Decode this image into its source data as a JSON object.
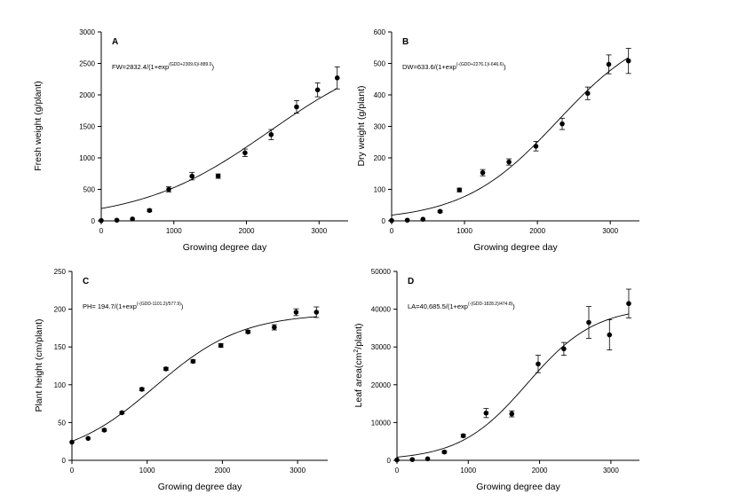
{
  "chart_data": [
    {
      "type": "scatter",
      "panel": "A",
      "xlabel": "Growing degree day",
      "ylabel": "Fresh weight (g/plant)",
      "equation": {
        "main": "FW=2832.4/(1+exp",
        "sup": "(GDD+2309.6)/-889.0",
        "end": ")"
      },
      "xlim": [
        0,
        3400
      ],
      "ylim": [
        0,
        3000
      ],
      "xticks": [
        0,
        1000,
        2000,
        3000
      ],
      "yticks": [
        0,
        500,
        1000,
        1500,
        2000,
        2500,
        3000
      ],
      "fit": {
        "a": 2832.4,
        "b": 2309.6,
        "c": 889.0
      },
      "points": [
        {
          "x": 0,
          "y": 5,
          "err": 0
        },
        {
          "x": 215,
          "y": 10,
          "err": 0
        },
        {
          "x": 430,
          "y": 30,
          "err": 0
        },
        {
          "x": 665,
          "y": 165,
          "err": 20
        },
        {
          "x": 930,
          "y": 500,
          "err": 40
        },
        {
          "x": 1250,
          "y": 710,
          "err": 60
        },
        {
          "x": 1610,
          "y": 710,
          "err": 35
        },
        {
          "x": 1980,
          "y": 1080,
          "err": 60
        },
        {
          "x": 2340,
          "y": 1370,
          "err": 80
        },
        {
          "x": 2690,
          "y": 1810,
          "err": 100
        },
        {
          "x": 2980,
          "y": 2080,
          "err": 110
        },
        {
          "x": 3250,
          "y": 2270,
          "err": 175
        }
      ]
    },
    {
      "type": "scatter",
      "panel": "B",
      "xlabel": "Growing degree day",
      "ylabel": "Dry weight (g/plant)",
      "equation": {
        "main": "DW=633.6/(1+exp",
        "sup": "(-(GDD+2276.1)/-646.6)",
        "end": ")"
      },
      "xlim": [
        0,
        3400
      ],
      "ylim": [
        0,
        600
      ],
      "xticks": [
        0,
        1000,
        2000,
        3000
      ],
      "yticks": [
        0,
        100,
        200,
        300,
        400,
        500,
        600
      ],
      "fit": {
        "a": 633.6,
        "b": 2276.1,
        "c": 646.6
      },
      "points": [
        {
          "x": 0,
          "y": 1,
          "err": 0
        },
        {
          "x": 215,
          "y": 2,
          "err": 0
        },
        {
          "x": 430,
          "y": 5,
          "err": 0
        },
        {
          "x": 665,
          "y": 30,
          "err": 3
        },
        {
          "x": 930,
          "y": 98,
          "err": 6
        },
        {
          "x": 1250,
          "y": 153,
          "err": 10
        },
        {
          "x": 1610,
          "y": 187,
          "err": 10
        },
        {
          "x": 1980,
          "y": 237,
          "err": 15
        },
        {
          "x": 2340,
          "y": 308,
          "err": 18
        },
        {
          "x": 2690,
          "y": 405,
          "err": 20
        },
        {
          "x": 2980,
          "y": 497,
          "err": 30
        },
        {
          "x": 3250,
          "y": 508,
          "err": 40
        }
      ]
    },
    {
      "type": "scatter",
      "panel": "C",
      "xlabel": "Growing degree day",
      "ylabel": "Plant height (cm/plant)",
      "equation": {
        "main": "PH= 194.7/(1+exp",
        "sup": "(-(GDD-1101.2)/577.9)",
        "end": ")"
      },
      "xlim": [
        0,
        3400
      ],
      "ylim": [
        0,
        250
      ],
      "xticks": [
        0,
        1000,
        2000,
        3000
      ],
      "yticks": [
        0,
        50,
        100,
        150,
        200,
        250
      ],
      "fit": {
        "a": 194.7,
        "b": 1101.2,
        "c": 577.9
      },
      "points": [
        {
          "x": 0,
          "y": 24,
          "err": 0
        },
        {
          "x": 215,
          "y": 29,
          "err": 0
        },
        {
          "x": 430,
          "y": 40,
          "err": 1.5
        },
        {
          "x": 665,
          "y": 63,
          "err": 1.5
        },
        {
          "x": 930,
          "y": 94,
          "err": 2
        },
        {
          "x": 1250,
          "y": 121,
          "err": 2
        },
        {
          "x": 1610,
          "y": 131,
          "err": 2
        },
        {
          "x": 1980,
          "y": 152,
          "err": 2.5
        },
        {
          "x": 2340,
          "y": 170,
          "err": 2
        },
        {
          "x": 2690,
          "y": 176,
          "err": 3.5
        },
        {
          "x": 2980,
          "y": 196,
          "err": 4.5
        },
        {
          "x": 3250,
          "y": 196,
          "err": 7
        }
      ]
    },
    {
      "type": "scatter",
      "panel": "D",
      "xlabel": "Growing degree day",
      "ylabel": "Leaf area(cm²/plant)",
      "ylabel_parts": {
        "pre": "Leaf area(cm",
        "sup": "2",
        "post": "/plant)"
      },
      "equation": {
        "main": "LA=40,685.5/(1+exp",
        "sup": "(-(GDD-1828.2)/474.8)",
        "end": ")"
      },
      "xlim": [
        0,
        3400
      ],
      "ylim": [
        0,
        50000
      ],
      "xticks": [
        0,
        1000,
        2000,
        3000
      ],
      "yticks": [
        0,
        10000,
        20000,
        30000,
        40000,
        50000
      ],
      "fit": {
        "a": 40685.5,
        "b": 1828.2,
        "c": 474.8
      },
      "points": [
        {
          "x": 0,
          "y": 100,
          "err": 0
        },
        {
          "x": 215,
          "y": 200,
          "err": 0
        },
        {
          "x": 430,
          "y": 400,
          "err": 0
        },
        {
          "x": 665,
          "y": 2200,
          "err": 300
        },
        {
          "x": 930,
          "y": 6500,
          "err": 400
        },
        {
          "x": 1250,
          "y": 12500,
          "err": 1200
        },
        {
          "x": 1610,
          "y": 12300,
          "err": 800
        },
        {
          "x": 1980,
          "y": 25500,
          "err": 2300
        },
        {
          "x": 2340,
          "y": 29500,
          "err": 1700
        },
        {
          "x": 2690,
          "y": 36500,
          "err": 4200
        },
        {
          "x": 2980,
          "y": 33200,
          "err": 4000
        },
        {
          "x": 3250,
          "y": 41500,
          "err": 3800
        }
      ]
    }
  ]
}
